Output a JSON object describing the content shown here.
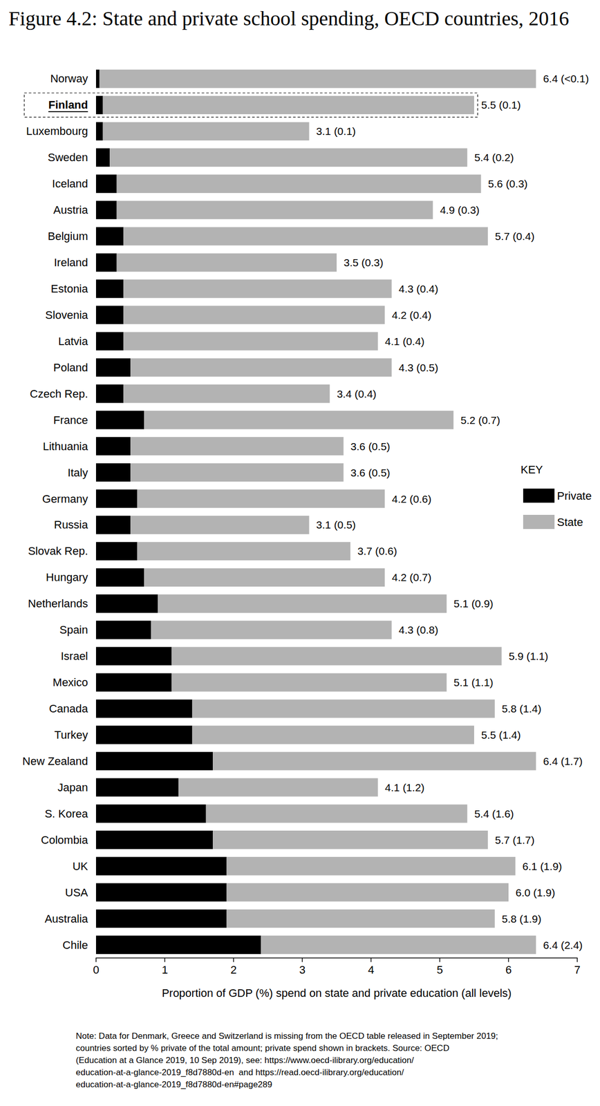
{
  "chart_data": {
    "type": "bar",
    "title": "Figure 4.2: State and private school spending, OECD countries, 2016",
    "x_label": "Proportion of GDP (%) spend on state and private education (all levels)",
    "legend_title": "KEY",
    "note": "Note: Data for Denmark, Greece and Switzerland is missing from the OECD table released in September 2019; countries sorted by % private of the total amount; private spend shown in brackets. Source: OECD (Education at a Glance 2019, 10 Sep 2019), see: https://www.oecd-ilibrary.org/education/education-at-a-glance-2019_f8d7880d-en  and https://read.oecd-ilibrary.org/education/education-at-a-glance-2019_f8d7880d-en#page289",
    "highlight": "Finland",
    "orientation": "horizontal",
    "stacked": true,
    "grid": false,
    "legend": "right",
    "categories": [
      "Norway",
      "Finland",
      "Luxembourg",
      "Sweden",
      "Iceland",
      "Austria",
      "Belgium",
      "Ireland",
      "Estonia",
      "Slovenia",
      "Latvia",
      "Poland",
      "Czech Rep.",
      "France",
      "Lithuania",
      "Italy",
      "Germany",
      "Russia",
      "Slovak Rep.",
      "Hungary",
      "Netherlands",
      "Spain",
      "Israel",
      "Mexico",
      "Canada",
      "Turkey",
      "New Zealand",
      "Japan",
      "S. Korea",
      "Colombia",
      "UK",
      "USA",
      "Australia",
      "Chile"
    ],
    "series": [
      {
        "name": "Private",
        "color": "#000000",
        "values": [
          0.05,
          0.1,
          0.1,
          0.2,
          0.3,
          0.3,
          0.4,
          0.3,
          0.4,
          0.4,
          0.4,
          0.5,
          0.4,
          0.7,
          0.5,
          0.5,
          0.6,
          0.5,
          0.6,
          0.7,
          0.9,
          0.8,
          1.1,
          1.1,
          1.4,
          1.4,
          1.7,
          1.2,
          1.6,
          1.7,
          1.9,
          1.9,
          1.9,
          2.4
        ]
      },
      {
        "name": "State",
        "color": "#b3b3b3",
        "values": [
          6.35,
          5.4,
          3.0,
          5.2,
          5.3,
          4.6,
          5.3,
          3.2,
          3.9,
          3.8,
          3.7,
          3.8,
          3.0,
          4.5,
          3.1,
          3.1,
          3.6,
          2.6,
          3.1,
          3.5,
          4.2,
          3.5,
          4.8,
          4.0,
          4.4,
          4.1,
          4.7,
          2.9,
          3.8,
          4.0,
          4.2,
          4.1,
          3.9,
          4.0
        ]
      }
    ],
    "bar_labels": [
      "6.4 (<0.1)",
      "5.5 (0.1)",
      "3.1 (0.1)",
      "5.4 (0.2)",
      "5.6 (0.3)",
      "4.9 (0.3)",
      "5.7 (0.4)",
      "3.5 (0.3)",
      "4.3 (0.4)",
      "4.2 (0.4)",
      "4.1 (0.4)",
      "4.3 (0.5)",
      "3.4 (0.4)",
      "5.2 (0.7)",
      "3.6 (0.5)",
      "3.6 (0.5)",
      "4.2 (0.6)",
      "3.1 (0.5)",
      "3.7 (0.6)",
      "4.2 (0.7)",
      "5.1 (0.9)",
      "4.3 (0.8)",
      "5.9 (1.1)",
      "5.1 (1.1)",
      "5.8 (1.4)",
      "5.5 (1.4)",
      "6.4 (1.7)",
      "4.1 (1.2)",
      "5.4 (1.6)",
      "5.7 (1.7)",
      "6.1 (1.9)",
      "6.0 (1.9)",
      "5.8 (1.9)",
      "6.4 (2.4)"
    ],
    "xlim": [
      0,
      7
    ],
    "xticks": [
      0,
      1,
      2,
      3,
      4,
      5,
      6,
      7
    ]
  }
}
